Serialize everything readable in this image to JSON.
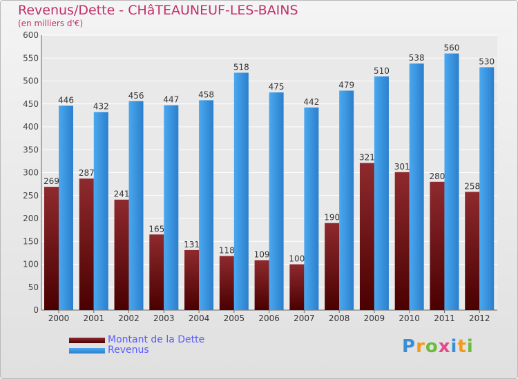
{
  "title": "Revenus/Dette - CHâTEAUNEUF-LES-BAINS",
  "subtitle": "(en milliers d'€)",
  "logo": "Proxiti",
  "colors": {
    "debt": "#6b1014",
    "revenue": "#2f8ad8",
    "title": "#c0306a",
    "legend_text": "#5a5aff"
  },
  "chart_data": {
    "type": "bar",
    "title": "Revenus/Dette - CHâTEAUNEUF-LES-BAINS",
    "subtitle": "(en milliers d'€)",
    "categories": [
      "2000",
      "2001",
      "2002",
      "2003",
      "2004",
      "2005",
      "2006",
      "2007",
      "2008",
      "2009",
      "2010",
      "2011",
      "2012"
    ],
    "series": [
      {
        "name": "Montant de la Dette",
        "values": [
          269,
          287,
          241,
          165,
          131,
          118,
          109,
          100,
          190,
          321,
          301,
          280,
          258
        ]
      },
      {
        "name": "Revenus",
        "values": [
          446,
          432,
          456,
          447,
          458,
          518,
          475,
          442,
          479,
          510,
          538,
          560,
          530
        ]
      }
    ],
    "ylim": [
      0,
      600
    ],
    "yticks": [
      0,
      50,
      100,
      150,
      200,
      250,
      300,
      350,
      400,
      450,
      500,
      550,
      600
    ],
    "grid": true,
    "legend": "bottom-left"
  }
}
